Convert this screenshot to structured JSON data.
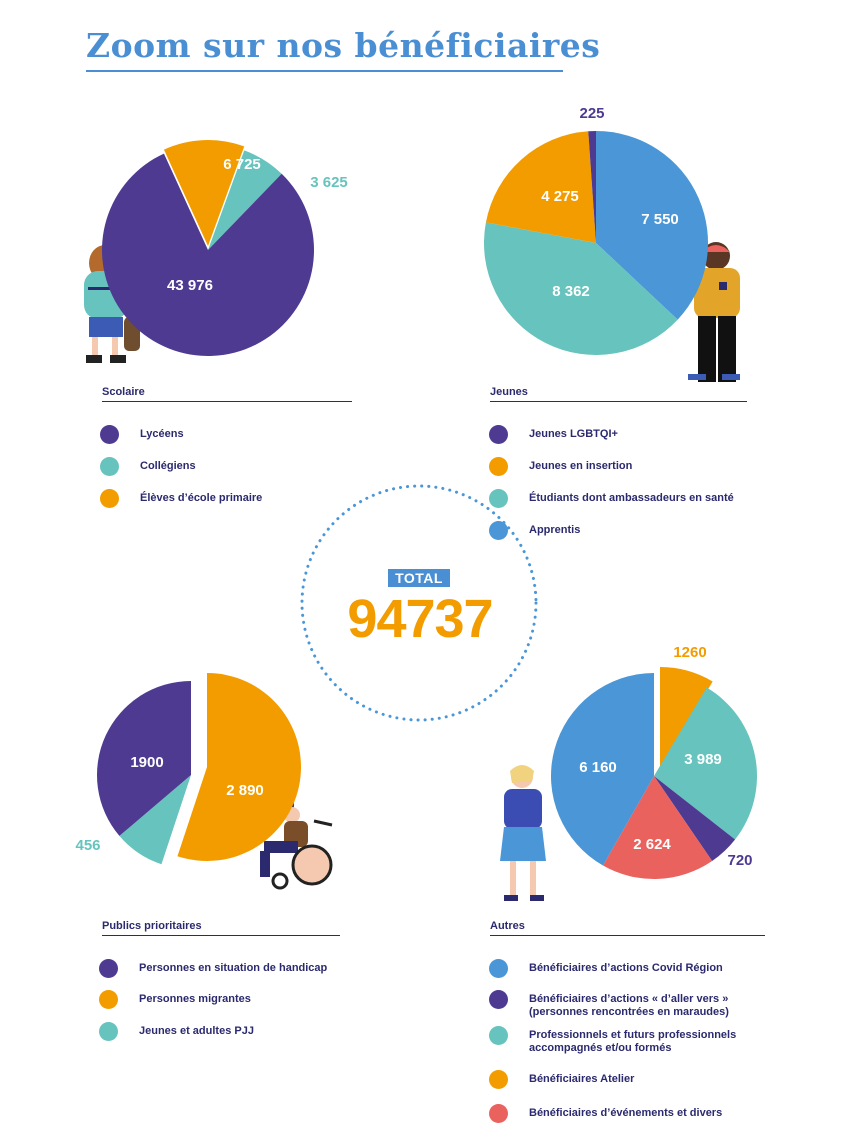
{
  "page": {
    "title": "Zoom sur nos bénéficiaires"
  },
  "total": {
    "label": "TOTAL",
    "value": "94737"
  },
  "colors": {
    "purple": "#4e3a91",
    "teal": "#67c3bd",
    "orange": "#f39c00",
    "blue": "#4a96d6",
    "red": "#e9625e",
    "navy": "#2b2a6e"
  },
  "chart_data": [
    {
      "type": "pie",
      "title": "Scolaire",
      "slices": [
        {
          "label": "Lycéens",
          "value": 43976,
          "display": "43 976",
          "color": "#4e3a91",
          "exploded": false
        },
        {
          "label": "Collégiens",
          "value": 3625,
          "display": "3 625",
          "color": "#67c3bd",
          "exploded": false
        },
        {
          "label": "Élèves d’école primaire",
          "value": 6725,
          "display": "6 725",
          "color": "#f39c00",
          "exploded": true
        }
      ]
    },
    {
      "type": "pie",
      "title": "Jeunes",
      "slices": [
        {
          "label": "Jeunes LGBTQI+",
          "value": 225,
          "display": "225",
          "color": "#4e3a91",
          "exploded": false
        },
        {
          "label": "Jeunes en insertion",
          "value": 4275,
          "display": "4 275",
          "color": "#f39c00",
          "exploded": false
        },
        {
          "label": "Étudiants dont ambassadeurs en santé",
          "value": 8362,
          "display": "8 362",
          "color": "#67c3bd",
          "exploded": false
        },
        {
          "label": "Apprentis",
          "value": 7550,
          "display": "7 550",
          "color": "#4a96d6",
          "exploded": false
        }
      ]
    },
    {
      "type": "pie",
      "title": "Publics prioritaires",
      "slices": [
        {
          "label": "Personnes en situation de handicap",
          "value": 1900,
          "display": "1900",
          "color": "#4e3a91",
          "exploded": false
        },
        {
          "label": "Personnes migrantes",
          "value": 2890,
          "display": "2 890",
          "color": "#f39c00",
          "exploded": true
        },
        {
          "label": "Jeunes et adultes PJJ",
          "value": 456,
          "display": "456",
          "color": "#67c3bd",
          "exploded": false
        }
      ]
    },
    {
      "type": "pie",
      "title": "Autres",
      "slices": [
        {
          "label": "Bénéficiaires d’actions Covid Région",
          "value": 6160,
          "display": "6 160",
          "color": "#4a96d6",
          "exploded": false
        },
        {
          "label": "Bénéficiaires d’actions « d’aller vers » (personnes rencontrées en maraudes)",
          "value": 720,
          "display": "720",
          "color": "#4e3a91",
          "exploded": false
        },
        {
          "label": "Professionnels et futurs professionnels accompagnés et/ou formés",
          "value": 3989,
          "display": "3 989",
          "color": "#67c3bd",
          "exploded": false
        },
        {
          "label": "Bénéficiaires Atelier",
          "value": 1260,
          "display": "1260",
          "color": "#f39c00",
          "exploded": true
        },
        {
          "label": "Bénéficiaires d’événements et divers",
          "value": 2624,
          "display": "2 624",
          "color": "#e9625e",
          "exploded": false
        }
      ]
    }
  ]
}
